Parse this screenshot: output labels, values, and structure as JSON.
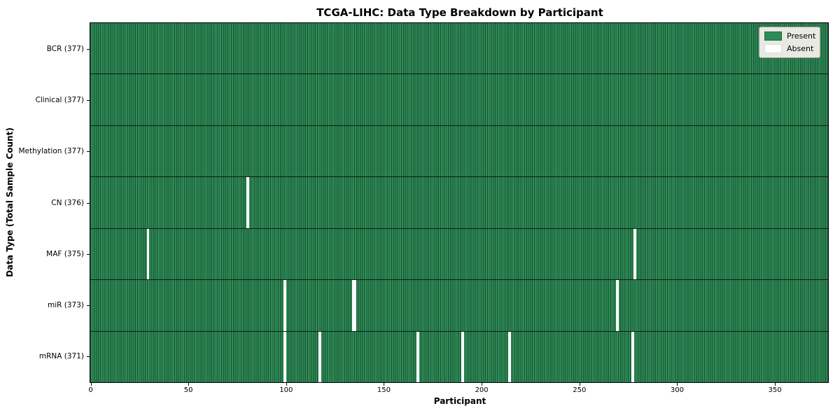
{
  "title": "TCGA-LIHC: Data Type Breakdown by Participant",
  "colors": {
    "present": "#2e8b57",
    "absent": "#ffffff",
    "cell_border": "rgba(0,0,0,0.42)",
    "row_border": "rgba(0,0,0,0.75)",
    "axis": "#000000",
    "legend_bg": "#e8eae2",
    "legend_border": "#999999"
  },
  "chart_data": {
    "type": "heatmap",
    "title": "TCGA-LIHC: Data Type Breakdown by Participant",
    "xlabel": "Participant",
    "ylabel": "Data Type (Total Sample Count)",
    "x_range": [
      0,
      377
    ],
    "n_participants": 377,
    "x_ticks": [
      0,
      50,
      100,
      150,
      200,
      250,
      300,
      350
    ],
    "grid": false,
    "legend_position": "upper right",
    "legend": [
      {
        "label": "Present",
        "color": "#2e8b57"
      },
      {
        "label": "Absent",
        "color": "#ffffff"
      }
    ],
    "rows": [
      {
        "label": "BCR (377)",
        "name": "BCR",
        "total": 377,
        "absent_participant_indices": []
      },
      {
        "label": "Clinical (377)",
        "name": "Clinical",
        "total": 377,
        "absent_participant_indices": []
      },
      {
        "label": "Methylation (377)",
        "name": "Methylation",
        "total": 377,
        "absent_participant_indices": []
      },
      {
        "label": "CN (376)",
        "name": "CN",
        "total": 376,
        "absent_participant_indices": [
          80
        ]
      },
      {
        "label": "MAF (375)",
        "name": "MAF",
        "total": 375,
        "absent_participant_indices": [
          29,
          278
        ]
      },
      {
        "label": "miR (373)",
        "name": "miR",
        "total": 373,
        "absent_participant_indices": [
          99,
          134,
          135,
          269
        ]
      },
      {
        "label": "mRNA (371)",
        "name": "mRNA",
        "total": 371,
        "absent_participant_indices": [
          99,
          117,
          167,
          190,
          214,
          277
        ]
      }
    ]
  }
}
